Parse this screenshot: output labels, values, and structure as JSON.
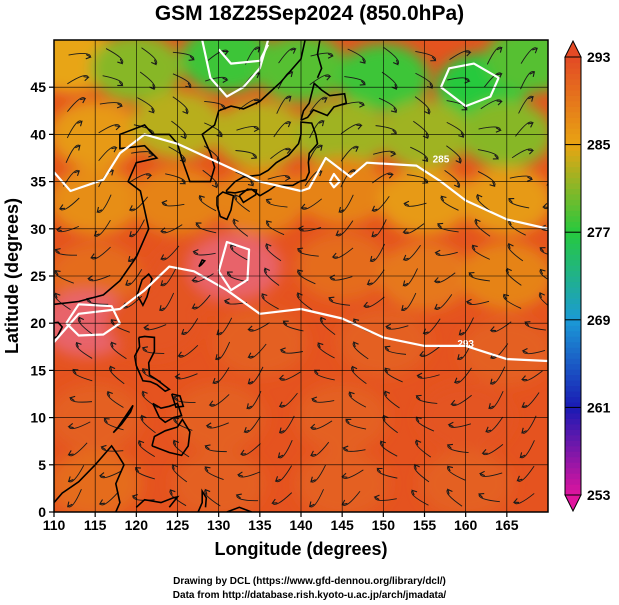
{
  "title": "GSM 18Z25Sep2024 (850.0hPa)",
  "credits": {
    "line1": "Drawing by DCL (https://www.gfd-dennou.org/library/dcl/)",
    "line2": "Data from http://database.rish.kyoto-u.ac.jp/arch/jmadata/"
  },
  "chart_data": {
    "type": "heatmap",
    "variable_description": "850 hPa temperature (shaded), streamlines, white contour lines",
    "xlabel": "Longitude (degrees)",
    "ylabel": "Latitude  (degrees)",
    "xlim": [
      110,
      170
    ],
    "ylim": [
      0,
      50
    ],
    "x_ticks": [
      110,
      115,
      120,
      125,
      130,
      135,
      140,
      145,
      150,
      155,
      160,
      165
    ],
    "y_ticks": [
      0,
      5,
      10,
      15,
      20,
      25,
      30,
      35,
      40,
      45
    ],
    "grid": true,
    "colorbar": {
      "min": 253,
      "max": 293,
      "labels": [
        253,
        261,
        269,
        277,
        285,
        293
      ],
      "colors": [
        "#e0149e",
        "#1a1ab4",
        "#1b9ad6",
        "#26c93e",
        "#e8a512",
        "#e34a25"
      ]
    },
    "contour_labels": [
      "285",
      "293"
    ],
    "contour_label_values": [
      {
        "lon": 160.0,
        "lat": 17.5,
        "text": "293"
      },
      {
        "lon": 157.0,
        "lat": 37.0,
        "text": "285"
      }
    ],
    "temperature_samples": [
      {
        "lon": 112,
        "lat": 48,
        "value": 285
      },
      {
        "lon": 120,
        "lat": 47,
        "value": 281
      },
      {
        "lon": 131,
        "lat": 48,
        "value": 278
      },
      {
        "lon": 140,
        "lat": 47,
        "value": 279
      },
      {
        "lon": 150,
        "lat": 46,
        "value": 278
      },
      {
        "lon": 162,
        "lat": 45,
        "value": 277
      },
      {
        "lon": 168,
        "lat": 48,
        "value": 279
      },
      {
        "lon": 115,
        "lat": 40,
        "value": 286
      },
      {
        "lon": 125,
        "lat": 41,
        "value": 283
      },
      {
        "lon": 135,
        "lat": 40,
        "value": 283
      },
      {
        "lon": 145,
        "lat": 40,
        "value": 282
      },
      {
        "lon": 155,
        "lat": 40,
        "value": 282
      },
      {
        "lon": 165,
        "lat": 40,
        "value": 281
      },
      {
        "lon": 115,
        "lat": 33,
        "value": 287
      },
      {
        "lon": 125,
        "lat": 33,
        "value": 288
      },
      {
        "lon": 135,
        "lat": 33,
        "value": 288
      },
      {
        "lon": 145,
        "lat": 34,
        "value": 288
      },
      {
        "lon": 155,
        "lat": 33,
        "value": 286
      },
      {
        "lon": 165,
        "lat": 33,
        "value": 286
      },
      {
        "lon": 115,
        "lat": 25,
        "value": 290
      },
      {
        "lon": 127,
        "lat": 25,
        "value": 292
      },
      {
        "lon": 132,
        "lat": 26,
        "value": 294
      },
      {
        "lon": 145,
        "lat": 26,
        "value": 290
      },
      {
        "lon": 155,
        "lat": 25,
        "value": 289
      },
      {
        "lon": 165,
        "lat": 25,
        "value": 288
      },
      {
        "lon": 114,
        "lat": 20,
        "value": 295
      },
      {
        "lon": 122,
        "lat": 20,
        "value": 292
      },
      {
        "lon": 135,
        "lat": 18,
        "value": 291
      },
      {
        "lon": 150,
        "lat": 18,
        "value": 291
      },
      {
        "lon": 165,
        "lat": 17,
        "value": 291
      },
      {
        "lon": 115,
        "lat": 10,
        "value": 291
      },
      {
        "lon": 130,
        "lat": 10,
        "value": 291
      },
      {
        "lon": 145,
        "lat": 10,
        "value": 291
      },
      {
        "lon": 160,
        "lat": 10,
        "value": 292
      },
      {
        "lon": 115,
        "lat": 3,
        "value": 290
      },
      {
        "lon": 130,
        "lat": 3,
        "value": 291
      },
      {
        "lon": 145,
        "lat": 3,
        "value": 291
      },
      {
        "lon": 160,
        "lat": 3,
        "value": 291
      }
    ]
  }
}
